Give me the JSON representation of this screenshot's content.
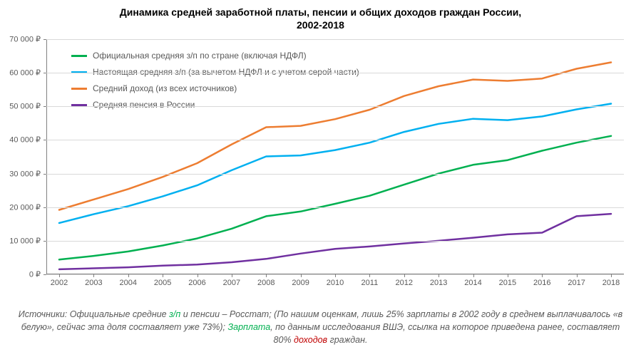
{
  "title_line1": "Динамика средней заработной платы, пенсии и общих доходов граждан России,",
  "title_line2": "2002-2018",
  "title_fontsize": 14,
  "title_color": "#000000",
  "chart": {
    "type": "line",
    "background_color": "#ffffff",
    "grid_color": "#d9d9d9",
    "axis_color": "#808080",
    "tick_label_color": "#595959",
    "tick_label_fontsize": 11,
    "x_categories": [
      "2002",
      "2003",
      "2004",
      "2005",
      "2006",
      "2007",
      "2008",
      "2009",
      "2010",
      "2011",
      "2012",
      "2013",
      "2014",
      "2015",
      "2016",
      "2017",
      "2018"
    ],
    "ylim": [
      0,
      70000
    ],
    "ytick_step": 10000,
    "y_suffix": " ₽",
    "y_tick_labels": [
      "0 ₽",
      "10 000 ₽",
      "20 000 ₽",
      "30 000 ₽",
      "40 000 ₽",
      "50 000 ₽",
      "60 000 ₽",
      "70 000 ₽"
    ],
    "line_width": 2.5,
    "series": [
      {
        "name": "official_salary",
        "label": "Официальная средняя з/п по стране (включая НДФЛ)",
        "color": "#00b050",
        "values": [
          4400,
          5500,
          6800,
          8600,
          10700,
          13600,
          17300,
          18700,
          21000,
          23400,
          26700,
          30000,
          32600,
          34000,
          36800,
          39200,
          41200
        ]
      },
      {
        "name": "real_salary",
        "label": "Настоящая средняя з/п (за вычетом НДФЛ и с учетом серой части)",
        "color": "#00b0f0",
        "values": [
          15300,
          17900,
          20300,
          23200,
          26500,
          31000,
          35100,
          35400,
          37000,
          39200,
          42400,
          44800,
          46300,
          45900,
          47000,
          49100,
          50800
        ]
      },
      {
        "name": "total_income",
        "label": "Средний доход (из всех источников)",
        "color": "#ed7d31",
        "values": [
          19200,
          22300,
          25400,
          29000,
          33100,
          38700,
          43800,
          44200,
          46200,
          49000,
          53100,
          56000,
          58000,
          57600,
          58300,
          61200,
          63100
        ]
      },
      {
        "name": "pension",
        "label": "Средняя пенсия в России",
        "color": "#7030a0",
        "values": [
          1500,
          1800,
          2100,
          2600,
          2900,
          3600,
          4600,
          6200,
          7600,
          8300,
          9200,
          10000,
          10900,
          11900,
          12400,
          17300,
          18000
        ]
      }
    ],
    "legend": {
      "position": "top-left",
      "fontsize": 12,
      "text_color": "#595959"
    }
  },
  "footnote": {
    "fontsize": 12.5,
    "font_style": "italic",
    "color": "#595959",
    "parts": [
      {
        "t": "Источники: Официальные средние "
      },
      {
        "t": "з/п",
        "cls": "fn-green"
      },
      {
        "t": " и пенсии – Росстат; (По нашим оценкам, лишь 25% зарплаты в 2002 году в среднем выплачивалось «в белую», сейчас эта доля составляет уже 73%); "
      },
      {
        "t": "Зарплата",
        "cls": "fn-green"
      },
      {
        "t": ", по данным исследования ВШЭ, ссылка на которое приведена ранее, составляет 80% "
      },
      {
        "t": "доходов",
        "cls": "fn-red"
      },
      {
        "t": " граждан."
      }
    ]
  }
}
